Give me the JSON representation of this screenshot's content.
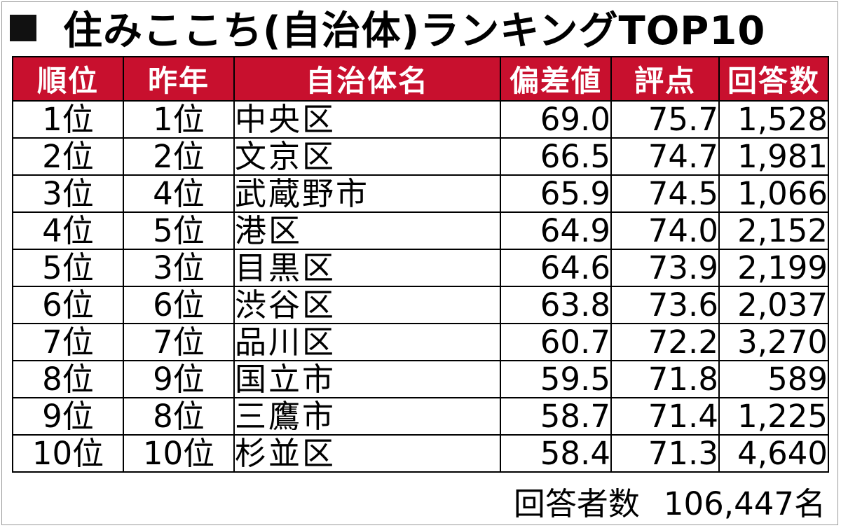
{
  "title": {
    "marker_icon": "black-square",
    "text": "住みここち(自治体)ランキングTOP10"
  },
  "colors": {
    "header_bg": "#c8102e",
    "header_text": "#ffffff",
    "border": "#000000"
  },
  "table": {
    "headers": [
      "順位",
      "昨年",
      "自治体名",
      "偏差値",
      "評点",
      "回答数"
    ],
    "rows": [
      {
        "rank": "1位",
        "prev": "1位",
        "name": "中央区",
        "deviation": "69.0",
        "score": "75.7",
        "responses": "1,528"
      },
      {
        "rank": "2位",
        "prev": "2位",
        "name": "文京区",
        "deviation": "66.5",
        "score": "74.7",
        "responses": "1,981"
      },
      {
        "rank": "3位",
        "prev": "4位",
        "name": "武蔵野市",
        "deviation": "65.9",
        "score": "74.5",
        "responses": "1,066"
      },
      {
        "rank": "4位",
        "prev": "5位",
        "name": "港区",
        "deviation": "64.9",
        "score": "74.0",
        "responses": "2,152"
      },
      {
        "rank": "5位",
        "prev": "3位",
        "name": "目黒区",
        "deviation": "64.6",
        "score": "73.9",
        "responses": "2,199"
      },
      {
        "rank": "6位",
        "prev": "6位",
        "name": "渋谷区",
        "deviation": "63.8",
        "score": "73.6",
        "responses": "2,037"
      },
      {
        "rank": "7位",
        "prev": "7位",
        "name": "品川区",
        "deviation": "60.7",
        "score": "72.2",
        "responses": "3,270"
      },
      {
        "rank": "8位",
        "prev": "9位",
        "name": "国立市",
        "deviation": "59.5",
        "score": "71.8",
        "responses": "589"
      },
      {
        "rank": "9位",
        "prev": "8位",
        "name": "三鷹市",
        "deviation": "58.7",
        "score": "71.4",
        "responses": "1,225"
      },
      {
        "rank": "10位",
        "prev": "10位",
        "name": "杉並区",
        "deviation": "58.4",
        "score": "71.3",
        "responses": "4,640"
      }
    ]
  },
  "footer": {
    "label": "回答者数",
    "value": "106,447名"
  }
}
